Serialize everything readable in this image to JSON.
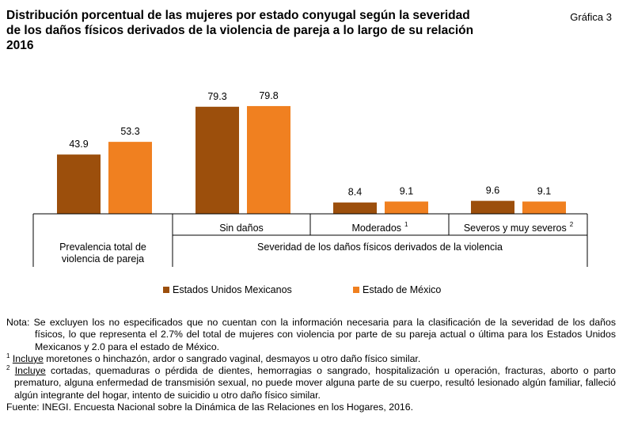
{
  "title": {
    "line1": "Distribución porcentual de las mujeres por estado conyugal según la severidad",
    "line2": "de los daños físicos derivados de la violencia de pareja a lo largo de su relación",
    "line3": "2016"
  },
  "graph_number": "Gráfica 3",
  "colors": {
    "series1": "#9C4F0C",
    "series2": "#F08020",
    "axis": "#000000"
  },
  "chart_data": {
    "type": "bar",
    "categories": [
      "Prevalencia total de violencia de pareja",
      "Sin daños",
      "Moderados",
      "Severos y muy severos"
    ],
    "category_labels": [
      {
        "text": "",
        "line1": "Prevalencia total de",
        "line2": "violencia de pareja",
        "sup": ""
      },
      {
        "text": "Sin daños",
        "sup": ""
      },
      {
        "text": "Moderados",
        "sup": "1"
      },
      {
        "text": "Severos y muy severos",
        "sup": "2"
      }
    ],
    "group_label": "Severidad de los daños físicos derivados de la violencia",
    "series": [
      {
        "name": "Estados Unidos Mexicanos",
        "values": [
          43.9,
          79.3,
          8.4,
          9.6
        ]
      },
      {
        "name": "Estado de México",
        "values": [
          53.3,
          79.8,
          9.1,
          9.1
        ]
      }
    ],
    "data_labels": [
      [
        "43.9",
        "79.3",
        "8.4",
        "9.6"
      ],
      [
        "53.3",
        "79.8",
        "9.1",
        "9.1"
      ]
    ],
    "ylim": [
      0,
      100
    ],
    "legend_position": "bottom",
    "grid": false
  },
  "notes": {
    "nota_label": "Nota:",
    "nota_text": "Se excluyen los no especificados que no cuentan con la información necesaria para la clasificación de la severidad de los daños físicos, lo que representa el 2.7% del total de mujeres con violencia por parte de su pareja actual o última para los Estados Unidos Mexicanos y 2.0 para el estado de México.",
    "fn1_mark": "1",
    "fn1_word": "Incluye",
    "fn1_text": " moretones o hinchazón, ardor o sangrado vaginal, desmayos u otro daño físico similar.",
    "fn2_mark": "2",
    "fn2_word": "Incluye",
    "fn2_text": " cortadas, quemaduras o pérdida de dientes, hemorragias o sangrado, hospitalización u operación, fracturas, aborto o parto prematuro, alguna enfermedad de transmisión sexual, no puede mover alguna parte de su cuerpo, resultó lesionado algún familiar, falleció algún integrante del hogar, intento de suicidio u otro daño físico similar.",
    "fuente": "Fuente: INEGI. Encuesta Nacional sobre la Dinámica de las Relaciones en los Hogares, 2016."
  }
}
